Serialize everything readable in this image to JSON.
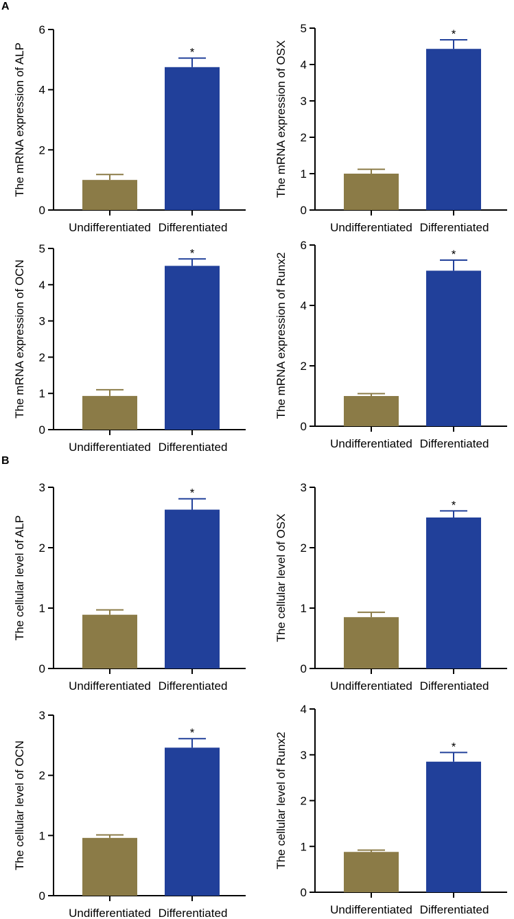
{
  "figure": {
    "panel_labels": [
      "A",
      "B"
    ]
  },
  "colors": {
    "undifferentiated": "#8b7b47",
    "differentiated": "#21409a",
    "axis": "#000000"
  },
  "chart_data": [
    {
      "type": "bar",
      "panel": "A",
      "ylabel": "The mRNA expression of ALP",
      "categories": [
        "Undifferentiated",
        "Differentiated"
      ],
      "values": [
        1.0,
        4.75
      ],
      "errors": [
        0.18,
        0.3
      ],
      "ylim": [
        0,
        6
      ],
      "yticks": [
        0,
        2,
        4,
        6
      ],
      "significance": [
        "",
        "*"
      ]
    },
    {
      "type": "bar",
      "panel": "A",
      "ylabel": "The mRNA expression of OSX",
      "categories": [
        "Undifferentiated",
        "Differentiated"
      ],
      "values": [
        1.0,
        4.43
      ],
      "errors": [
        0.12,
        0.25
      ],
      "ylim": [
        0,
        5
      ],
      "yticks": [
        0,
        1,
        2,
        3,
        4,
        5
      ],
      "significance": [
        "",
        "*"
      ]
    },
    {
      "type": "bar",
      "panel": "A",
      "ylabel": "The mRNA expression of OCN",
      "categories": [
        "Undifferentiated",
        "Differentiated"
      ],
      "values": [
        0.93,
        4.52
      ],
      "errors": [
        0.17,
        0.19
      ],
      "ylim": [
        0,
        5
      ],
      "yticks": [
        0,
        1,
        2,
        3,
        4,
        5
      ],
      "significance": [
        "",
        "*"
      ]
    },
    {
      "type": "bar",
      "panel": "A",
      "ylabel": "The mRNA expression of Runx2",
      "categories": [
        "Undifferentiated",
        "Differentiated"
      ],
      "values": [
        1.0,
        5.15
      ],
      "errors": [
        0.08,
        0.35
      ],
      "ylim": [
        0,
        6
      ],
      "yticks": [
        0,
        2,
        4,
        6
      ],
      "significance": [
        "",
        "*"
      ]
    },
    {
      "type": "bar",
      "panel": "B",
      "ylabel": "The cellular level of ALP",
      "categories": [
        "Undifferentiated",
        "Differentiated"
      ],
      "values": [
        0.89,
        2.63
      ],
      "errors": [
        0.08,
        0.18
      ],
      "ylim": [
        0,
        3
      ],
      "yticks": [
        0,
        1,
        2,
        3
      ],
      "significance": [
        "",
        "*"
      ]
    },
    {
      "type": "bar",
      "panel": "B",
      "ylabel": "The cellular level of OSX",
      "categories": [
        "Undifferentiated",
        "Differentiated"
      ],
      "values": [
        0.85,
        2.5
      ],
      "errors": [
        0.08,
        0.11
      ],
      "ylim": [
        0,
        3
      ],
      "yticks": [
        0,
        1,
        2,
        3
      ],
      "significance": [
        "",
        "*"
      ]
    },
    {
      "type": "bar",
      "panel": "B",
      "ylabel": "The cellular level of OCN",
      "categories": [
        "Undifferentiated",
        "Differentiated"
      ],
      "values": [
        0.96,
        2.46
      ],
      "errors": [
        0.05,
        0.15
      ],
      "ylim": [
        0,
        3
      ],
      "yticks": [
        0,
        1,
        2,
        3
      ],
      "significance": [
        "",
        "*"
      ]
    },
    {
      "type": "bar",
      "panel": "B",
      "ylabel": "The cellular level of Runx2",
      "categories": [
        "Undifferentiated",
        "Differentiated"
      ],
      "values": [
        0.88,
        2.85
      ],
      "errors": [
        0.04,
        0.2
      ],
      "ylim": [
        0,
        4
      ],
      "yticks": [
        0,
        1,
        2,
        3,
        4
      ],
      "significance": [
        "",
        "*"
      ]
    }
  ]
}
